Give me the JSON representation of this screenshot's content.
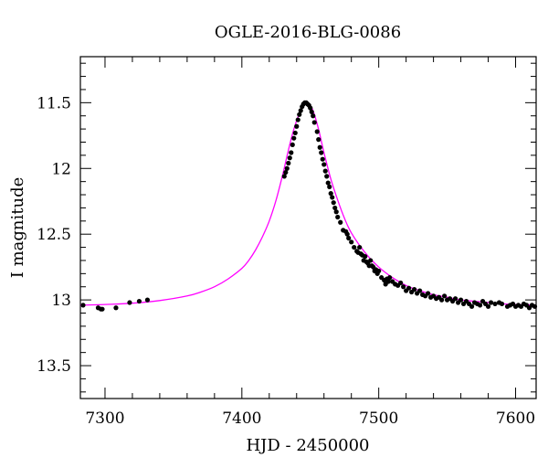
{
  "chart_data": {
    "type": "scatter",
    "title": "OGLE-2016-BLG-0086",
    "xlabel": "HJD - 2450000",
    "ylabel": "I magnitude",
    "xlim": [
      7282,
      7615
    ],
    "ylim": [
      13.75,
      11.15
    ],
    "y_inverted": true,
    "x_ticks": [
      7300,
      7400,
      7500,
      7600
    ],
    "y_ticks": [
      11.5,
      12,
      12.5,
      13,
      13.5
    ],
    "x_tick_labels": [
      "7300",
      "7400",
      "7500",
      "7600"
    ],
    "y_tick_labels": [
      "11.5",
      "12",
      "12.5",
      "13",
      "13.5"
    ],
    "grid": false,
    "series": [
      {
        "kind": "points",
        "color": "#000000",
        "x": [
          7284,
          7295,
          7297,
          7298,
          7308,
          7318,
          7325,
          7331,
          7431,
          7432,
          7433,
          7434,
          7435,
          7436,
          7437,
          7438,
          7439,
          7440,
          7441,
          7442,
          7443,
          7444,
          7445,
          7446,
          7447,
          7448,
          7449,
          7450,
          7451,
          7452,
          7453,
          7455,
          7456,
          7457,
          7458,
          7459,
          7460,
          7461,
          7462,
          7463,
          7464,
          7465,
          7466,
          7467,
          7468,
          7469,
          7470,
          7472,
          7474,
          7476,
          7477,
          7478,
          7480,
          7482,
          7484,
          7485,
          7486,
          7487,
          7488,
          7489,
          7490,
          7491,
          7492,
          7493,
          7494,
          7495,
          7496,
          7497,
          7498,
          7499,
          7500,
          7502,
          7504,
          7505,
          7506,
          7507,
          7508,
          7510,
          7512,
          7514,
          7516,
          7518,
          7520,
          7522,
          7524,
          7526,
          7528,
          7530,
          7532,
          7534,
          7536,
          7538,
          7540,
          7542,
          7544,
          7546,
          7548,
          7550,
          7552,
          7554,
          7556,
          7558,
          7560,
          7562,
          7564,
          7566,
          7568,
          7570,
          7572,
          7574,
          7576,
          7578,
          7580,
          7582,
          7585,
          7588,
          7590,
          7594,
          7596,
          7598,
          7600,
          7602,
          7604,
          7606,
          7608,
          7610,
          7612,
          7614
        ],
        "y": [
          13.04,
          13.06,
          13.07,
          13.07,
          13.06,
          13.02,
          13.01,
          13.0,
          12.06,
          12.03,
          12.0,
          11.96,
          11.92,
          11.88,
          11.82,
          11.77,
          11.73,
          11.68,
          11.63,
          11.59,
          11.56,
          11.53,
          11.51,
          11.5,
          11.5,
          11.51,
          11.52,
          11.54,
          11.57,
          11.6,
          11.65,
          11.72,
          11.78,
          11.84,
          11.88,
          11.93,
          11.97,
          12.02,
          12.06,
          12.11,
          12.14,
          12.19,
          12.22,
          12.26,
          12.3,
          12.33,
          12.37,
          12.41,
          12.47,
          12.48,
          12.5,
          12.53,
          12.56,
          12.6,
          12.63,
          12.64,
          12.6,
          12.65,
          12.66,
          12.7,
          12.67,
          12.71,
          12.72,
          12.74,
          12.7,
          12.74,
          12.75,
          12.78,
          12.77,
          12.8,
          12.78,
          12.83,
          12.85,
          12.88,
          12.84,
          12.86,
          12.83,
          12.86,
          12.88,
          12.89,
          12.87,
          12.9,
          12.93,
          12.91,
          12.94,
          12.92,
          12.95,
          12.93,
          12.96,
          12.97,
          12.95,
          12.98,
          12.97,
          12.99,
          12.98,
          13.0,
          12.97,
          13.0,
          12.99,
          13.01,
          12.99,
          13.02,
          13.0,
          13.03,
          13.01,
          13.03,
          13.05,
          13.02,
          13.03,
          13.04,
          13.01,
          13.03,
          13.05,
          13.02,
          13.03,
          13.02,
          13.03,
          13.05,
          13.04,
          13.03,
          13.05,
          13.04,
          13.05,
          13.03,
          13.04,
          13.06,
          13.04,
          13.05
        ]
      },
      {
        "kind": "model-curve",
        "color": "#ff00ff",
        "x": [
          7282,
          7300,
          7320,
          7340,
          7360,
          7370,
          7380,
          7390,
          7400,
          7405,
          7410,
          7415,
          7420,
          7425,
          7430,
          7434,
          7438,
          7442,
          7445,
          7447,
          7449,
          7452,
          7456,
          7460,
          7465,
          7470,
          7475,
          7480,
          7490,
          7500,
          7510,
          7520,
          7530,
          7540,
          7550,
          7560,
          7570,
          7580,
          7590,
          7600,
          7615
        ],
        "y": [
          13.04,
          13.035,
          13.025,
          13.005,
          12.97,
          12.94,
          12.9,
          12.84,
          12.76,
          12.7,
          12.62,
          12.52,
          12.4,
          12.24,
          12.04,
          11.86,
          11.7,
          11.58,
          11.52,
          11.5,
          11.51,
          11.56,
          11.7,
          11.88,
          12.08,
          12.24,
          12.38,
          12.49,
          12.64,
          12.75,
          12.83,
          12.89,
          12.93,
          12.96,
          12.98,
          13.0,
          13.01,
          13.02,
          13.03,
          13.035,
          13.04
        ]
      }
    ]
  }
}
